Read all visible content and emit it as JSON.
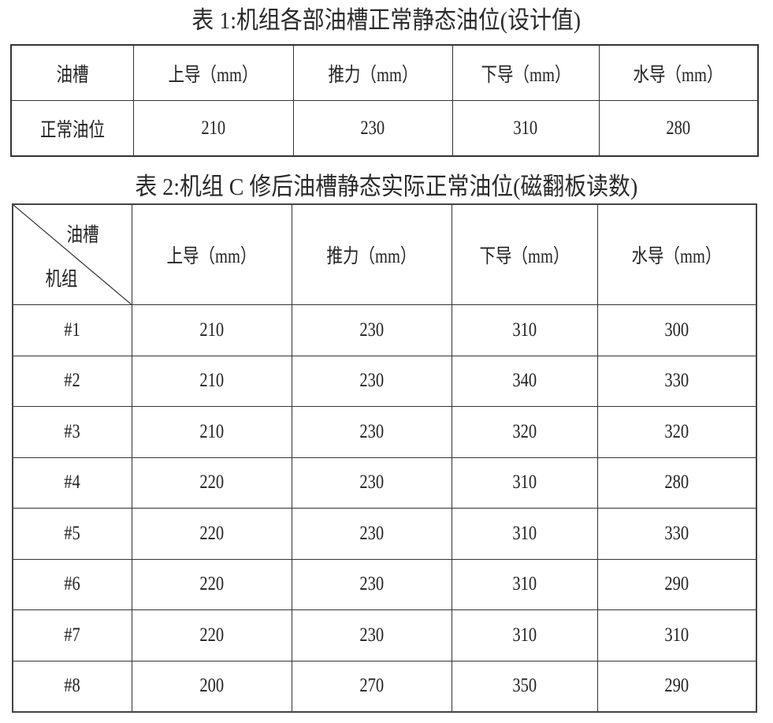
{
  "table1": {
    "title": "表 1:机组各部油槽正常静态油位(设计值)",
    "headers": [
      "油槽",
      "上导（mm）",
      "推力（mm）",
      "下导（mm）",
      "水导（mm）"
    ],
    "rows": [
      [
        "正常油位",
        "210",
        "230",
        "310",
        "280"
      ]
    ]
  },
  "table2": {
    "title": "表 2:机组 C 修后油槽静态实际正常油位(磁翻板读数)",
    "corner_top": "油槽",
    "corner_bottom": "机组",
    "headers": [
      "上导（mm）",
      "推力（mm）",
      "下导（mm）",
      "水导（mm）"
    ],
    "rows": [
      [
        "#1",
        "210",
        "230",
        "310",
        "300"
      ],
      [
        "#2",
        "210",
        "230",
        "340",
        "330"
      ],
      [
        "#3",
        "210",
        "230",
        "320",
        "320"
      ],
      [
        "#4",
        "220",
        "230",
        "310",
        "280"
      ],
      [
        "#5",
        "220",
        "230",
        "310",
        "330"
      ],
      [
        "#6",
        "220",
        "230",
        "310",
        "290"
      ],
      [
        "#7",
        "220",
        "230",
        "310",
        "310"
      ],
      [
        "#8",
        "200",
        "270",
        "350",
        "290"
      ]
    ]
  }
}
